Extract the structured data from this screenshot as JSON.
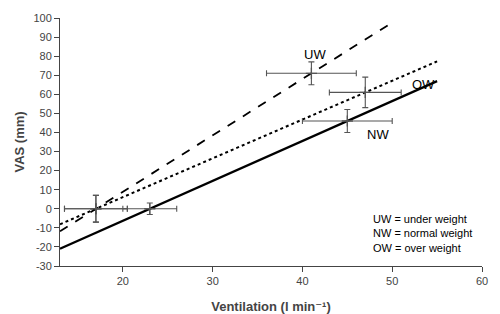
{
  "chart_data": {
    "type": "line",
    "xlabel": "Ventilation (l min⁻¹)",
    "ylabel": "VAS (mm)",
    "xlim": [
      13,
      60
    ],
    "xticks": [
      20,
      30,
      40,
      50,
      60
    ],
    "ylim": [
      -30,
      100
    ],
    "yticks": [
      -30,
      -20,
      -10,
      0,
      10,
      20,
      30,
      40,
      50,
      60,
      70,
      80,
      90,
      100
    ],
    "grid": false,
    "series": [
      {
        "line_style": "dashed",
        "color": "#000000",
        "x": [
          13,
          50
        ],
        "values": [
          -11.833333333333334,
          97.625
        ],
        "points": {
          "x": [
            17,
            41
          ],
          "values": [
            0,
            71
          ],
          "xerr": [
            3.5,
            5
          ],
          "yerr": [
            7,
            6
          ],
          "marker": "plus",
          "color": "#555555"
        }
      },
      {
        "line_style": "dotted",
        "color": "#000000",
        "x": [
          13,
          55
        ],
        "values": [
          -8.133333333333333,
          77.26666666666667
        ],
        "points": {
          "x": [
            17,
            47
          ],
          "values": [
            0,
            61
          ],
          "xerr": [
            3.5,
            4
          ],
          "yerr": [
            7,
            8
          ],
          "marker": "plus",
          "color": "#555555"
        }
      },
      {
        "line_style": "solid",
        "color": "#000000",
        "x": [
          13,
          55
        ],
        "values": [
          -20.90909090909091,
          66.9090909090909
        ],
        "points": {
          "x": [
            23,
            45
          ],
          "values": [
            0,
            46
          ],
          "xerr": [
            3,
            5
          ],
          "yerr": [
            3,
            6
          ],
          "marker": "plus",
          "color": "#555555"
        }
      }
    ],
    "annotations": [
      {
        "text": "UW",
        "x": 40,
        "y": 79
      },
      {
        "text": "OW",
        "x": 52,
        "y": 63
      },
      {
        "text": "NW",
        "x": 47,
        "y": 37
      },
      {
        "lines": [
          "UW = under weight",
          "NW = normal weight",
          "OW = over weight"
        ]
      }
    ]
  }
}
